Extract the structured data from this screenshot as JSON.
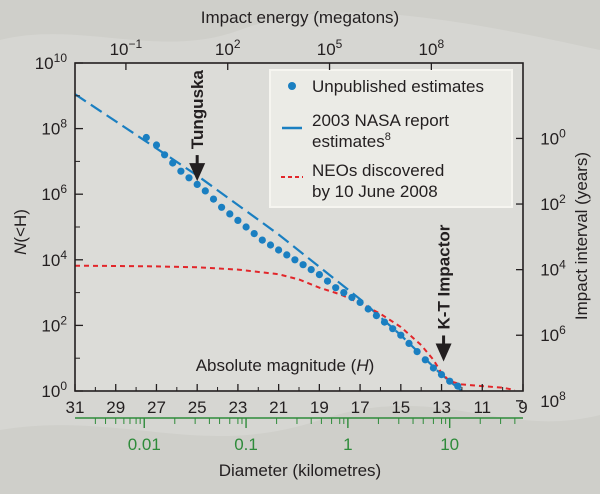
{
  "colors": {
    "background": "#d6d6d2",
    "plot_area": "#dcdcd8",
    "legend_bg": "#ecece8",
    "blue": "#1a7fc1",
    "red": "#e2262a",
    "green": "#2e8b3a",
    "axis": "#231f20"
  },
  "chart_data": {
    "type": "scatter",
    "xlabel": "Absolute magnitude (H)",
    "ylabel_italic": "N",
    "ylabel_rest": "(<H)",
    "xlim": [
      31,
      9
    ],
    "ylog_lim": [
      0,
      10
    ],
    "x_ticks": [
      "31",
      "29",
      "27",
      "25",
      "23",
      "21",
      "19",
      "17",
      "15",
      "13",
      "11",
      "9"
    ],
    "y_ticks": [
      {
        "exp": 0,
        "label_base": "10",
        "label_exp": "0"
      },
      {
        "exp": 2,
        "label_base": "10",
        "label_exp": "2"
      },
      {
        "exp": 4,
        "label_base": "10",
        "label_exp": "4"
      },
      {
        "exp": 6,
        "label_base": "10",
        "label_exp": "6"
      },
      {
        "exp": 8,
        "label_base": "10",
        "label_exp": "8"
      },
      {
        "exp": 10,
        "label_base": "10",
        "label_exp": "10"
      }
    ],
    "top_axis": {
      "label": "Impact energy (megatons)",
      "ticks": [
        {
          "H": 28.5,
          "label_base": "10",
          "label_exp": "−1"
        },
        {
          "H": 23.5,
          "label_base": "10",
          "label_exp": "2"
        },
        {
          "H": 18.5,
          "label_base": "10",
          "label_exp": "5"
        },
        {
          "H": 13.5,
          "label_base": "10",
          "label_exp": "8"
        }
      ]
    },
    "right_axis": {
      "label": "Impact interval (years)",
      "ticks": [
        {
          "log_n": 7.7,
          "label_base": "10",
          "label_exp": "0"
        },
        {
          "log_n": 5.7,
          "label_base": "10",
          "label_exp": "2"
        },
        {
          "log_n": 3.7,
          "label_base": "10",
          "label_exp": "4"
        },
        {
          "log_n": 1.7,
          "label_base": "10",
          "label_exp": "6"
        },
        {
          "log_n": -0.3,
          "label_base": "10",
          "label_exp": "8"
        }
      ]
    },
    "bottom_axis": {
      "label": "Diameter (kilometres)",
      "major_ticks": [
        {
          "H": 27.6,
          "label": "0.01"
        },
        {
          "H": 22.6,
          "label": "0.1"
        },
        {
          "H": 17.6,
          "label": "1"
        },
        {
          "H": 12.6,
          "label": "10"
        }
      ],
      "minor_ticks_H": [
        30.0,
        29.5,
        29.0,
        28.6,
        28.3,
        28.0,
        27.8,
        26.1,
        25.1,
        24.4,
        23.9,
        23.4,
        23.0,
        22.8,
        21.1,
        20.1,
        19.4,
        18.9,
        18.4,
        18.0,
        17.8,
        16.1,
        15.1,
        14.4,
        13.9,
        13.4,
        13.0,
        12.8,
        11.1,
        10.1,
        9.4
      ]
    },
    "series": [
      {
        "name": "Unpublished estimates",
        "kind": "dots",
        "points": [
          [
            27.5,
            7.73
          ],
          [
            27.0,
            7.5
          ],
          [
            26.6,
            7.2
          ],
          [
            26.2,
            6.95
          ],
          [
            25.8,
            6.7
          ],
          [
            25.4,
            6.5
          ],
          [
            25.0,
            6.3
          ],
          [
            24.6,
            6.1
          ],
          [
            24.2,
            5.85
          ],
          [
            23.8,
            5.6
          ],
          [
            23.4,
            5.4
          ],
          [
            23.0,
            5.2
          ],
          [
            22.6,
            5.0
          ],
          [
            22.2,
            4.8
          ],
          [
            21.8,
            4.6
          ],
          [
            21.4,
            4.45
          ],
          [
            21.0,
            4.3
          ],
          [
            20.6,
            4.15
          ],
          [
            20.2,
            4.0
          ],
          [
            19.8,
            3.85
          ],
          [
            19.4,
            3.7
          ],
          [
            19.0,
            3.55
          ],
          [
            18.6,
            3.35
          ],
          [
            18.2,
            3.15
          ],
          [
            17.8,
            3.0
          ],
          [
            17.4,
            2.85
          ],
          [
            17.0,
            2.7
          ],
          [
            16.6,
            2.5
          ],
          [
            16.2,
            2.3
          ],
          [
            15.8,
            2.1
          ],
          [
            15.4,
            1.9
          ],
          [
            15.0,
            1.7
          ],
          [
            14.6,
            1.45
          ],
          [
            14.2,
            1.2
          ],
          [
            13.8,
            0.95
          ],
          [
            13.4,
            0.7
          ],
          [
            13.0,
            0.5
          ],
          [
            12.6,
            0.3
          ],
          [
            12.2,
            0.15
          ]
        ]
      },
      {
        "name": "2003 NASA report estimates",
        "superscript": "8",
        "kind": "dashed-line",
        "points": [
          [
            31,
            9.05
          ],
          [
            25,
            6.57
          ],
          [
            21,
            4.77
          ],
          [
            17,
            2.8
          ],
          [
            15,
            1.7
          ],
          [
            13,
            0.5
          ],
          [
            12,
            0.0
          ],
          [
            11.5,
            -0.35
          ]
        ]
      },
      {
        "name": "NEOs discovered by 10 June 2008",
        "kind": "short-dash-line",
        "points": [
          [
            31,
            3.82
          ],
          [
            29,
            3.81
          ],
          [
            27,
            3.8
          ],
          [
            25,
            3.77
          ],
          [
            23,
            3.7
          ],
          [
            21,
            3.56
          ],
          [
            20,
            3.4
          ],
          [
            19,
            3.15
          ],
          [
            18,
            2.95
          ],
          [
            17,
            2.68
          ],
          [
            16,
            2.35
          ],
          [
            15,
            1.95
          ],
          [
            14,
            1.4
          ],
          [
            13.4,
            0.95
          ],
          [
            13,
            0.55
          ],
          [
            12.6,
            0.3
          ],
          [
            12,
            0.2
          ],
          [
            11,
            0.15
          ],
          [
            10,
            0.1
          ],
          [
            9.4,
            0.03
          ]
        ]
      }
    ],
    "annotations": [
      {
        "text": "Tunguska",
        "H": 25.0,
        "arrow_tip_log": 6.4
      },
      {
        "text": "K-T Impactor",
        "H": 12.9,
        "arrow_tip_log": 0.9
      }
    ],
    "legend": {
      "placement": "top-right",
      "items": [
        {
          "kind": "dot",
          "lines": [
            "Unpublished estimates"
          ]
        },
        {
          "kind": "dashed",
          "lines": [
            "2003 NASA report",
            "estimates"
          ],
          "superscript": "8"
        },
        {
          "kind": "short-dash",
          "lines": [
            "NEOs discovered",
            "by 10 June 2008"
          ]
        }
      ]
    }
  }
}
